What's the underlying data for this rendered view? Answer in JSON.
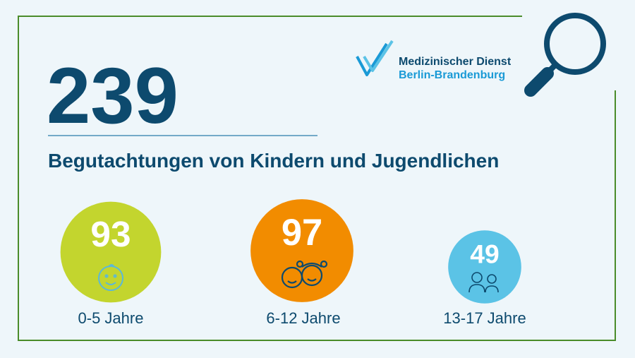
{
  "header": {
    "total": "239",
    "subtitle": "Begutachtungen von Kindern und Jugendlichen"
  },
  "logo": {
    "line1": "Medizinischer Dienst",
    "line2": "Berlin-Brandenburg"
  },
  "groups": [
    {
      "value": 93,
      "label": "0-5 Jahre",
      "color": "#c3d52e"
    },
    {
      "value": 97,
      "label": "6-12 Jahre",
      "color": "#f28c00"
    },
    {
      "value": 49,
      "label": "13-17 Jahre",
      "color": "#5bc3e6"
    }
  ]
}
